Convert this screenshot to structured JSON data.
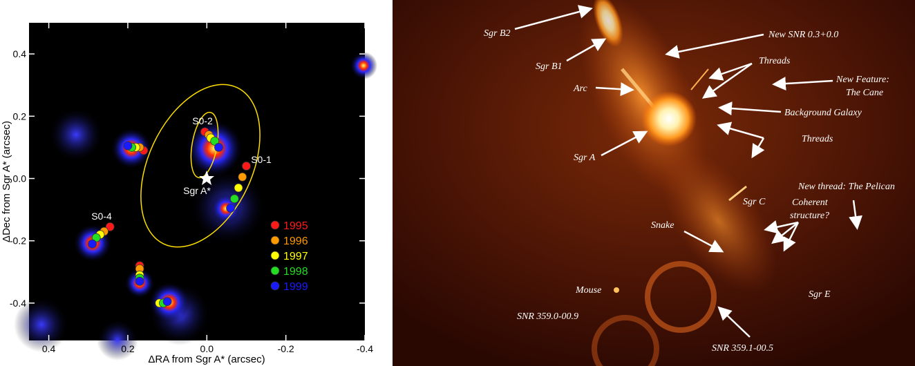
{
  "chart_data": {
    "type": "scatter",
    "x_label": "ΔRA from Sgr A* (arcsec)",
    "y_label": "ΔDec from Sgr A* (arcsec)",
    "xlim": [
      0.45,
      -0.4
    ],
    "ylim": [
      -0.52,
      0.5
    ],
    "xticks": [
      0.4,
      0.2,
      {
        "value": 0,
        "label": "0.0"
      },
      -0.2,
      -0.4
    ],
    "yticks": [
      -0.4,
      -0.2,
      {
        "value": 0,
        "label": "0.0"
      },
      0.2,
      0.4
    ],
    "annotations": [
      "S0-2",
      "S0-1",
      "S0-4",
      "Sgr A*"
    ],
    "series": [
      {
        "name": "1995",
        "color": "#ff1a1a",
        "x": [
          0.005,
          -0.1,
          0.245,
          0.16,
          0.17,
          null
        ],
        "values": [
          0.15,
          0.04,
          -0.155,
          0.09,
          -0.28,
          null
        ]
      },
      {
        "name": "1996",
        "color": "#ff9900",
        "x": [
          -0.005,
          -0.09,
          0.26,
          0.17,
          0.17,
          null
        ],
        "values": [
          0.14,
          0.005,
          -0.17,
          0.1,
          -0.29,
          null
        ]
      },
      {
        "name": "1997",
        "color": "#ffff00",
        "x": [
          -0.01,
          -0.08,
          0.27,
          0.18,
          0.17,
          0.12
        ],
        "values": [
          0.13,
          -0.03,
          -0.18,
          0.1,
          -0.31,
          -0.4
        ]
      },
      {
        "name": "1998",
        "color": "#22dd22",
        "x": [
          -0.02,
          -0.07,
          0.28,
          0.19,
          0.17,
          0.11
        ],
        "values": [
          0.12,
          -0.065,
          -0.19,
          0.1,
          -0.32,
          -0.4
        ]
      },
      {
        "name": "1999",
        "color": "#1a1aff",
        "x": [
          -0.03,
          -0.06,
          0.29,
          0.2,
          0.17,
          0.1
        ],
        "values": [
          0.1,
          -0.095,
          -0.21,
          0.105,
          -0.33,
          -0.395
        ]
      }
    ]
  },
  "image": {
    "labels": [
      "Sgr B2",
      "Sgr B1",
      "Arc",
      "Sgr A",
      "New SNR 0.3+0.0",
      "Threads",
      "New Feature:",
      "The Cane",
      "Background Galaxy",
      "Threads",
      "New thread: The Pelican",
      "Coherent",
      "structure?",
      "Sgr C",
      "Snake",
      "Mouse",
      "Sgr E",
      "SNR 359.0-00.9",
      "SNR 359.1-00.5"
    ]
  }
}
